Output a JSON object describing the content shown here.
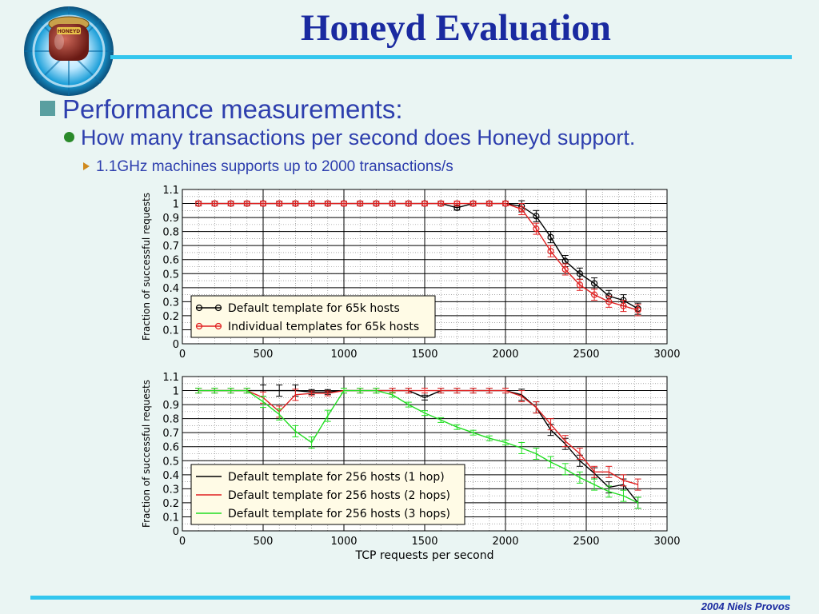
{
  "slide": {
    "title": "Honeyd Evaluation",
    "bullet1": "Performance measurements:",
    "bullet2": "How many transactions per second does Honeyd support.",
    "bullet3": "1.1GHz machines supports up to 2000 transactions/s",
    "footer": "2004 Niels Provos",
    "logo_label": "HONEYD"
  },
  "colors": {
    "title": "#1a2aa0",
    "bullet_text": "#2e3fae",
    "rule": "#33c6ee",
    "background": "#eaf5f3"
  },
  "chart_data": [
    {
      "type": "line",
      "title": "",
      "xlabel": "",
      "ylabel": "Fraction of successful requests",
      "xlim": [
        0,
        3000
      ],
      "ylim": [
        0,
        1.1
      ],
      "xticks": [
        0,
        500,
        1000,
        1500,
        2000,
        2500,
        3000
      ],
      "yticks": [
        0,
        0.1,
        0.2,
        0.3,
        0.4,
        0.5,
        0.6,
        0.7,
        0.8,
        0.9,
        1,
        1.1
      ],
      "grid": true,
      "legend_position": "bottom-left",
      "series": [
        {
          "name": "Default template for 65k hosts",
          "color": "#000000",
          "x": [
            100,
            200,
            300,
            400,
            500,
            600,
            700,
            800,
            900,
            1000,
            1100,
            1200,
            1300,
            1400,
            1500,
            1600,
            1700,
            1800,
            1900,
            2000,
            2100,
            2190,
            2280,
            2370,
            2460,
            2550,
            2640,
            2730,
            2820
          ],
          "y": [
            1,
            1,
            1,
            1,
            1,
            1,
            1,
            1,
            1,
            1,
            1,
            1,
            1,
            1,
            1,
            1,
            0.97,
            1,
            1,
            1,
            0.98,
            0.91,
            0.76,
            0.59,
            0.5,
            0.43,
            0.34,
            0.31,
            0.25
          ]
        },
        {
          "name": "Individual templates for 65k hosts",
          "color": "#e02020",
          "x": [
            100,
            200,
            300,
            400,
            500,
            600,
            700,
            800,
            900,
            1000,
            1100,
            1200,
            1300,
            1400,
            1500,
            1600,
            1700,
            1800,
            1900,
            2000,
            2100,
            2190,
            2280,
            2370,
            2460,
            2550,
            2640,
            2730,
            2820
          ],
          "y": [
            1,
            1,
            1,
            1,
            1,
            1,
            1,
            1,
            1,
            1,
            1,
            1,
            1,
            1,
            1,
            1,
            1,
            1,
            1,
            1,
            0.96,
            0.82,
            0.66,
            0.53,
            0.42,
            0.35,
            0.3,
            0.27,
            0.24
          ]
        }
      ]
    },
    {
      "type": "line",
      "title": "",
      "xlabel": "TCP requests per second",
      "ylabel": "Fraction of successful requests",
      "xlim": [
        0,
        3000
      ],
      "ylim": [
        0,
        1.1
      ],
      "xticks": [
        0,
        500,
        1000,
        1500,
        2000,
        2500,
        3000
      ],
      "yticks": [
        0,
        0.1,
        0.2,
        0.3,
        0.4,
        0.5,
        0.6,
        0.7,
        0.8,
        0.9,
        1,
        1.1
      ],
      "grid": true,
      "legend_position": "bottom-left",
      "series": [
        {
          "name": "Default template for 256 hosts (1 hop)",
          "color": "#000000",
          "x": [
            100,
            200,
            300,
            400,
            500,
            600,
            700,
            800,
            900,
            1000,
            1100,
            1200,
            1300,
            1400,
            1500,
            1600,
            1700,
            1800,
            1900,
            2000,
            2100,
            2190,
            2280,
            2370,
            2460,
            2550,
            2640,
            2730,
            2820
          ],
          "y": [
            1,
            1,
            1,
            1,
            1,
            1,
            1,
            0.99,
            0.99,
            1,
            1,
            1,
            1,
            1,
            0.95,
            1,
            1,
            1,
            1,
            1,
            0.97,
            0.88,
            0.72,
            0.62,
            0.5,
            0.41,
            0.31,
            0.33,
            0.2
          ]
        },
        {
          "name": "Default template for 256 hosts (2 hops)",
          "color": "#e02020",
          "x": [
            100,
            200,
            300,
            400,
            500,
            600,
            700,
            800,
            900,
            1000,
            1100,
            1200,
            1300,
            1400,
            1500,
            1600,
            1700,
            1800,
            1900,
            2000,
            2100,
            2190,
            2280,
            2370,
            2460,
            2550,
            2640,
            2730,
            2820
          ],
          "y": [
            1,
            1,
            1,
            1,
            0.95,
            0.85,
            0.97,
            0.98,
            0.98,
            1,
            1,
            1,
            1,
            1,
            1,
            1,
            1,
            1,
            1,
            1,
            0.96,
            0.88,
            0.76,
            0.64,
            0.55,
            0.42,
            0.42,
            0.36,
            0.33
          ]
        },
        {
          "name": "Default template for 256 hosts (3 hops)",
          "color": "#22dd22",
          "x": [
            100,
            200,
            300,
            400,
            500,
            600,
            700,
            800,
            900,
            1000,
            1100,
            1200,
            1300,
            1400,
            1500,
            1600,
            1700,
            1800,
            1900,
            2000,
            2100,
            2190,
            2280,
            2370,
            2460,
            2550,
            2640,
            2730,
            2820
          ],
          "y": [
            1,
            1,
            1,
            1,
            0.92,
            0.83,
            0.71,
            0.63,
            0.82,
            1,
            1,
            1,
            0.97,
            0.9,
            0.84,
            0.79,
            0.74,
            0.7,
            0.66,
            0.63,
            0.59,
            0.55,
            0.49,
            0.44,
            0.38,
            0.33,
            0.28,
            0.25,
            0.2
          ]
        }
      ]
    }
  ]
}
